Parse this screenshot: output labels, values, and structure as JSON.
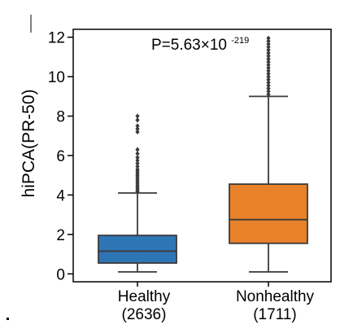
{
  "chart_data": {
    "type": "box",
    "ylabel": "hiPCA(PR-50)",
    "ylim": [
      -0.4,
      12.4
    ],
    "yticks": [
      0,
      2,
      4,
      6,
      8,
      10,
      12
    ],
    "grid": false,
    "categories": [
      {
        "name": "Healthy",
        "count": "(2636)"
      },
      {
        "name": "Nonhealthy",
        "count": "(1711)"
      }
    ],
    "boxes": [
      {
        "category": "Healthy",
        "color": "#2e75b6",
        "min": 0.1,
        "q1": 0.55,
        "median": 1.15,
        "q3": 1.95,
        "max": 4.1,
        "outliers": [
          4.15,
          4.2,
          4.3,
          4.4,
          4.5,
          4.6,
          4.7,
          4.8,
          4.9,
          5.0,
          5.1,
          5.2,
          5.3,
          5.45,
          5.6,
          5.75,
          5.9,
          6.1,
          6.3,
          7.2,
          7.35,
          7.5,
          7.8,
          8.0
        ]
      },
      {
        "category": "Nonhealthy",
        "color": "#e8822a",
        "min": 0.1,
        "q1": 1.55,
        "median": 2.75,
        "q3": 4.55,
        "max": 9.0,
        "outliers": [
          9.1,
          9.25,
          9.4,
          9.55,
          9.7,
          9.85,
          10.0,
          10.15,
          10.3,
          10.45,
          10.6,
          10.75,
          10.9,
          11.05,
          11.2,
          11.35,
          11.5,
          11.65,
          11.8,
          11.95
        ]
      }
    ],
    "annotation": {
      "base": "P=5.63×10",
      "exponent": "-219"
    }
  }
}
